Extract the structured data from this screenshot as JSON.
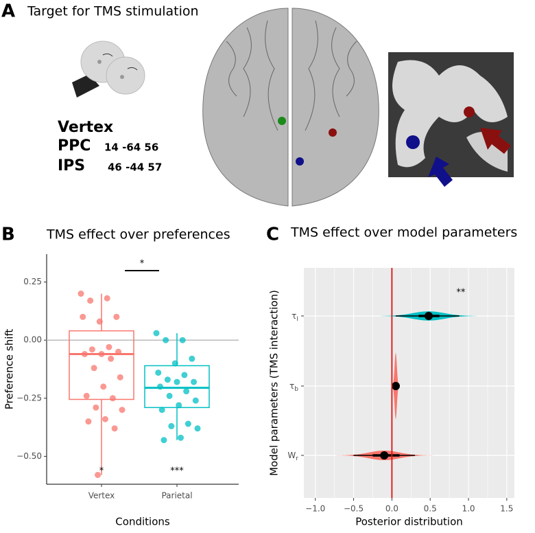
{
  "panel_a": {
    "label": "A",
    "title": "Target for TMS stimulation",
    "targets": [
      {
        "name": "Vertex",
        "color": "#1a8a1a"
      },
      {
        "name": "PPC",
        "coords": "14 -64 56",
        "color": "#10108a"
      },
      {
        "name": "IPS",
        "coords": "46 -44 57",
        "color": "#8a1010"
      }
    ]
  },
  "chart_data": [
    {
      "type": "box",
      "label": "B",
      "title": "TMS effect over preferences",
      "x_label": "Conditions",
      "y_label": "Preference shift",
      "categories": [
        "Vertex",
        "Parietal"
      ],
      "colors": [
        "#F8766D",
        "#00BFC4"
      ],
      "ylim": [
        -0.62,
        0.37
      ],
      "yticks": [
        {
          "value": 0.25,
          "label": "0.25"
        },
        {
          "value": 0,
          "label": "0.00"
        },
        {
          "value": -0.25,
          "label": "−0.25"
        },
        {
          "value": -0.5,
          "label": "−0.50"
        }
      ],
      "ref_line": 0,
      "boxes": [
        {
          "low": -0.58,
          "q1": -0.255,
          "median": -0.06,
          "q3": 0.04,
          "high": 0.2
        },
        {
          "low": -0.43,
          "q1": -0.29,
          "median": -0.205,
          "q3": -0.11,
          "high": 0.03
        }
      ],
      "points": [
        [
          0.2,
          0.18,
          0.17,
          0.1,
          0.08,
          0.1,
          -0.03,
          -0.04,
          -0.05,
          -0.06,
          -0.06,
          -0.08,
          -0.12,
          -0.16,
          -0.2,
          -0.24,
          -0.25,
          -0.29,
          -0.3,
          -0.34,
          -0.35,
          -0.38,
          -0.58
        ],
        [
          0.03,
          0.0,
          0.0,
          -0.08,
          -0.1,
          -0.14,
          -0.15,
          -0.17,
          -0.18,
          -0.18,
          -0.2,
          -0.22,
          -0.24,
          -0.26,
          -0.28,
          -0.3,
          -0.36,
          -0.37,
          -0.38,
          -0.42,
          -0.43
        ]
      ],
      "significance": [
        "*",
        "***"
      ],
      "comparison": "*"
    },
    {
      "type": "violin",
      "label": "C",
      "title": "TMS effect over model parameters",
      "x_label": "Posterior distribution",
      "y_label": "Model parameters (TMS interaction)",
      "categories": [
        {
          "symbol": "τ",
          "subscript": "I"
        },
        {
          "symbol": "τ",
          "subscript": "b"
        },
        {
          "symbol": "W",
          "subscript": "r"
        }
      ],
      "colors": [
        "#00BFC4",
        "#F8766D",
        "#F8766D"
      ],
      "xlim": [
        -1.15,
        1.6
      ],
      "xticks": [
        {
          "value": -1,
          "label": "−1.0"
        },
        {
          "value": -0.5,
          "label": "−0.5"
        },
        {
          "value": 0,
          "label": "0.0"
        },
        {
          "value": 0.5,
          "label": "0.5"
        },
        {
          "value": 1,
          "label": "1.0"
        },
        {
          "value": 1.5,
          "label": "1.5"
        }
      ],
      "ref_line": 0,
      "estimates": [
        {
          "median": 0.48,
          "inner": [
            0.35,
            0.62
          ],
          "outer": [
            0.05,
            0.88
          ]
        },
        {
          "median": 0.05,
          "inner": [
            0.03,
            0.07
          ],
          "outer": [
            0.02,
            0.08
          ]
        },
        {
          "median": -0.1,
          "inner": [
            -0.25,
            0.1
          ],
          "outer": [
            -0.5,
            0.3
          ]
        }
      ],
      "significance": [
        "**",
        null,
        null
      ]
    }
  ]
}
